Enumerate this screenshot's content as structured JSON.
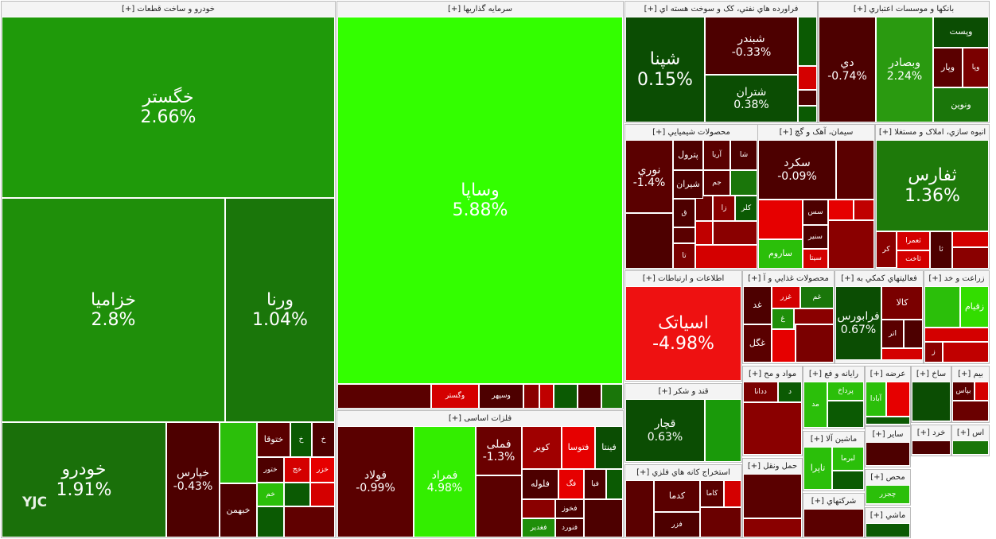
{
  "watermark": "YJC",
  "sectors": [
    {
      "title": "خودرو و ساخت قطعات [+]",
      "tiles": [
        {
          "name": "خگستر",
          "change": "2.66%"
        },
        {
          "name": "خزامیا",
          "change": "2.8%"
        },
        {
          "name": "ورنا",
          "change": "1.04%"
        },
        {
          "name": "خودرو",
          "change": "1.91%"
        },
        {
          "name": "خپارس",
          "change": "-0.43%"
        },
        {
          "name": "خبهمن"
        },
        {
          "name": "ختوقا"
        },
        {
          "name": "خ"
        },
        {
          "name": "خ"
        },
        {
          "name": "ختور"
        },
        {
          "name": "خج"
        },
        {
          "name": "خزر"
        },
        {
          "name": "خم"
        }
      ]
    },
    {
      "title": "سرمایه گذاریها [+]",
      "tiles": [
        {
          "name": "وساپا",
          "change": "5.88%"
        },
        {
          "name": "وگستر"
        },
        {
          "name": "وسپهر"
        }
      ]
    },
    {
      "title": "فلزات اساسی [+]",
      "tiles": [
        {
          "name": "فولاد",
          "change": "-0.99%"
        },
        {
          "name": "فمراد",
          "change": "4.98%"
        },
        {
          "name": "فملی",
          "change": "-1.3%"
        },
        {
          "name": "کویر"
        },
        {
          "name": "فتوسا"
        },
        {
          "name": "فینتا"
        },
        {
          "name": "فلوله"
        },
        {
          "name": "فگ"
        },
        {
          "name": "فیا"
        },
        {
          "name": "فخوز"
        },
        {
          "name": "فغدیر"
        },
        {
          "name": "فنورد"
        }
      ]
    },
    {
      "title": "فراورده هاي نفتي، كک و سوخت هسته اي [+]",
      "tiles": [
        {
          "name": "شپنا",
          "change": "0.15%"
        },
        {
          "name": "شبندر",
          "change": "-0.33%"
        },
        {
          "name": "شتران",
          "change": "0.38%"
        }
      ]
    },
    {
      "title": "بانكها و موسسات اعتباري [+]",
      "tiles": [
        {
          "name": "دي",
          "change": "-0.74%"
        },
        {
          "name": "وبصادر",
          "change": "2.24%"
        },
        {
          "name": "وپست"
        },
        {
          "name": "وپار"
        },
        {
          "name": "وپا"
        },
        {
          "name": "ونوين"
        }
      ]
    },
    {
      "title": "محصولات شيميايي [+]",
      "tiles": [
        {
          "name": "نوري",
          "change": "-1.4%"
        },
        {
          "name": "پترول"
        },
        {
          "name": "آريا"
        },
        {
          "name": "شا"
        },
        {
          "name": "شيران"
        },
        {
          "name": "جم"
        },
        {
          "name": "زا"
        },
        {
          "name": "كلر"
        },
        {
          "name": "ق"
        },
        {
          "name": "تا"
        }
      ]
    },
    {
      "title": "سيمان، آهک و گچ [+]",
      "tiles": [
        {
          "name": "سكرد",
          "change": "-0.09%"
        },
        {
          "name": "سس"
        },
        {
          "name": "سنير"
        },
        {
          "name": "ساروم"
        },
        {
          "name": "سيتا"
        }
      ]
    },
    {
      "title": "انبوه سازي، املاک و مستغلا [+]",
      "tiles": [
        {
          "name": "ثفارس",
          "change": "1.36%"
        },
        {
          "name": "كر"
        },
        {
          "name": "ثعمرا"
        },
        {
          "name": "ثاخت"
        },
        {
          "name": "ثا"
        }
      ]
    },
    {
      "title": "اطلاعات و ارتباطات [+]",
      "tiles": [
        {
          "name": "اسياتک",
          "change": "-4.98%"
        }
      ]
    },
    {
      "title": "محصولات غذايي و آ [+]",
      "tiles": [
        {
          "name": "غد"
        },
        {
          "name": "غزر"
        },
        {
          "name": "غم"
        },
        {
          "name": "غ"
        },
        {
          "name": "غگل"
        }
      ]
    },
    {
      "title": "فعاليتهاي كمكي به [+]",
      "tiles": [
        {
          "name": "فرابورس",
          "change": "0.67%"
        },
        {
          "name": "كالا"
        },
        {
          "name": "اتر"
        }
      ]
    },
    {
      "title": "زراعت و خد [+]",
      "tiles": [
        {
          "name": "زقيام"
        },
        {
          "name": "ز"
        }
      ]
    },
    {
      "title": "قند و شكر [+]",
      "tiles": [
        {
          "name": "قچار",
          "change": "0.63%"
        }
      ]
    },
    {
      "title": "استخراج كانه هاي فلزي [+]",
      "tiles": [
        {
          "name": "كدما"
        },
        {
          "name": "كاما"
        },
        {
          "name": "فزر"
        }
      ]
    },
    {
      "title": "مواد و مح [+]",
      "tiles": [
        {
          "name": "ددانا"
        },
        {
          "name": "د"
        }
      ]
    },
    {
      "title": "حمل ونقل [+]",
      "tiles": []
    },
    {
      "title": "رايانه و فع [+]",
      "tiles": [
        {
          "name": "پرداخ"
        },
        {
          "name": "مد"
        }
      ]
    },
    {
      "title": "ماشين آلا [+]",
      "tiles": [
        {
          "name": "تاپرا"
        },
        {
          "name": "لبرما"
        }
      ]
    },
    {
      "title": "شركتهاي [+]",
      "tiles": []
    },
    {
      "title": "عرضه [+]",
      "tiles": [
        {
          "name": "آبادا"
        }
      ]
    },
    {
      "title": "ساير [+]",
      "tiles": []
    },
    {
      "title": "محص [+]",
      "tiles": [
        {
          "name": "چجزر"
        }
      ]
    },
    {
      "title": "ماشي [+]",
      "tiles": []
    },
    {
      "title": "ساخ [+]",
      "tiles": []
    },
    {
      "title": "خرد [+]",
      "tiles": []
    },
    {
      "title": "بيم [+]",
      "tiles": [
        {
          "name": "بپاس"
        }
      ]
    },
    {
      "title": "اس [+]",
      "tiles": []
    }
  ]
}
